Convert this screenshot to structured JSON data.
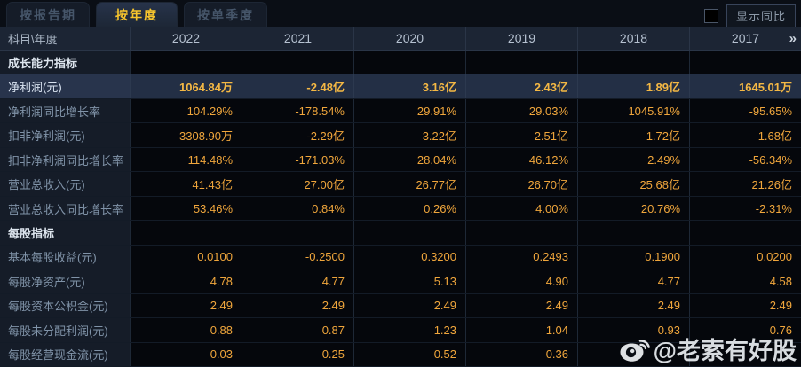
{
  "tabs": [
    {
      "label": "按报告期",
      "active": false
    },
    {
      "label": "按年度",
      "active": true
    },
    {
      "label": "按单季度",
      "active": false
    }
  ],
  "controls": {
    "show_yoy_label": "显示同比",
    "checkbox_checked": false
  },
  "table": {
    "corner_label": "科目\\年度",
    "year_columns": [
      "2022",
      "2021",
      "2020",
      "2019",
      "2018",
      "2017"
    ],
    "more_icon": "»",
    "rows": [
      {
        "type": "section",
        "label": "成长能力指标",
        "values": [
          "",
          "",
          "",
          "",
          "",
          ""
        ]
      },
      {
        "type": "data",
        "highlight": true,
        "label": "净利润(元)",
        "values": [
          "1064.84万",
          "-2.48亿",
          "3.16亿",
          "2.43亿",
          "1.89亿",
          "1645.01万"
        ]
      },
      {
        "type": "data",
        "label": "净利润同比增长率",
        "values": [
          "104.29%",
          "-178.54%",
          "29.91%",
          "29.03%",
          "1045.91%",
          "-95.65%"
        ]
      },
      {
        "type": "data",
        "label": "扣非净利润(元)",
        "values": [
          "3308.90万",
          "-2.29亿",
          "3.22亿",
          "2.51亿",
          "1.72亿",
          "1.68亿"
        ]
      },
      {
        "type": "data",
        "label": "扣非净利润同比增长率",
        "values": [
          "114.48%",
          "-171.03%",
          "28.04%",
          "46.12%",
          "2.49%",
          "-56.34%"
        ]
      },
      {
        "type": "data",
        "label": "营业总收入(元)",
        "values": [
          "41.43亿",
          "27.00亿",
          "26.77亿",
          "26.70亿",
          "25.68亿",
          "21.26亿"
        ]
      },
      {
        "type": "data",
        "label": "营业总收入同比增长率",
        "values": [
          "53.46%",
          "0.84%",
          "0.26%",
          "4.00%",
          "20.76%",
          "-2.31%"
        ]
      },
      {
        "type": "section",
        "label": "每股指标",
        "values": [
          "",
          "",
          "",
          "",
          "",
          ""
        ]
      },
      {
        "type": "data",
        "label": "基本每股收益(元)",
        "values": [
          "0.0100",
          "-0.2500",
          "0.3200",
          "0.2493",
          "0.1900",
          "0.0200"
        ]
      },
      {
        "type": "data",
        "label": "每股净资产(元)",
        "values": [
          "4.78",
          "4.77",
          "5.13",
          "4.90",
          "4.77",
          "4.58"
        ]
      },
      {
        "type": "data",
        "label": "每股资本公积金(元)",
        "values": [
          "2.49",
          "2.49",
          "2.49",
          "2.49",
          "2.49",
          "2.49"
        ]
      },
      {
        "type": "data",
        "label": "每股未分配利润(元)",
        "values": [
          "0.88",
          "0.87",
          "1.23",
          "1.04",
          "0.93",
          "0.76"
        ]
      },
      {
        "type": "data",
        "label": "每股经营现金流(元)",
        "values": [
          "0.03",
          "0.25",
          "0.52",
          "0.36",
          "",
          ""
        ]
      }
    ]
  },
  "watermark": {
    "icon": "weibo-icon",
    "text": "@老索有好股"
  },
  "colors": {
    "page_bg": "#0a0e15",
    "accent_gold": "#f7c52d",
    "value_orange": "#f0a63c",
    "header_bg": "#1c2534",
    "row_label_bg": "#151c28",
    "data_cell_bg": "#05070c",
    "highlight_bg": "#232f45"
  }
}
